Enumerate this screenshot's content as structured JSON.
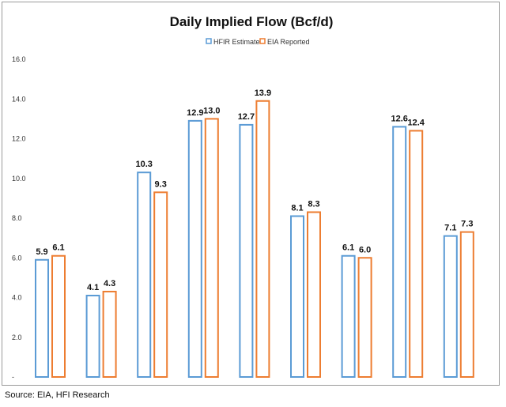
{
  "chart_data": {
    "type": "bar",
    "title": "Daily Implied Flow (Bcf/d)",
    "categories": [
      "",
      "",
      "",
      "",
      "",
      "",
      "",
      "",
      ""
    ],
    "series": [
      {
        "name": "HFIR Estimate",
        "color": "#5b9bd5",
        "values": [
          5.9,
          4.1,
          10.3,
          12.9,
          12.7,
          8.1,
          6.1,
          12.6,
          7.1
        ],
        "labels": [
          "5.9",
          "4.1",
          "10.3",
          "12.9",
          "12.7",
          "8.1",
          "6.1",
          "12.6",
          "7.1"
        ]
      },
      {
        "name": "EIA Reported",
        "color": "#ed7d31",
        "values": [
          6.1,
          4.3,
          9.3,
          13.0,
          13.9,
          8.3,
          6.0,
          12.4,
          7.3
        ],
        "labels": [
          "6.1",
          "4.3",
          "9.3",
          "13.0",
          "13.9",
          "8.3",
          "6.0",
          "12.4",
          "7.3"
        ]
      }
    ],
    "ylim": [
      0,
      16
    ],
    "yticks": [
      0,
      2,
      4,
      6,
      8,
      10,
      12,
      14,
      16
    ],
    "ytick_labels": [
      "-",
      "2.0",
      "4.0",
      "6.0",
      "8.0",
      "10.0",
      "12.0",
      "14.0",
      "16.0"
    ],
    "xlabel": "",
    "ylabel": "",
    "grid": false,
    "legend_position": "top-center"
  },
  "source_text": "Source: EIA, HFI Research"
}
